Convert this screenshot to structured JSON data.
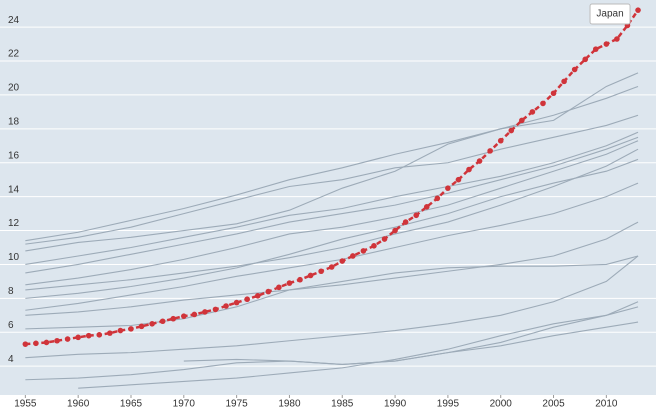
{
  "chart_data": {
    "type": "line",
    "xlim": [
      1952.6,
      2014.7
    ],
    "ylim": [
      2.3,
      25.6
    ],
    "xticks": [
      1955,
      1960,
      1965,
      1970,
      1975,
      1980,
      1985,
      1990,
      1995,
      2000,
      2005,
      2010
    ],
    "yticks": [
      4,
      6,
      8,
      10,
      12,
      14,
      16,
      18,
      20,
      22,
      24
    ],
    "grid": true,
    "series": [
      {
        "name": "Japan",
        "color": "#d0343a",
        "x": [
          1955,
          1956,
          1957,
          1958,
          1959,
          1960,
          1961,
          1962,
          1963,
          1964,
          1965,
          1966,
          1967,
          1968,
          1969,
          1970,
          1971,
          1972,
          1973,
          1974,
          1975,
          1976,
          1977,
          1978,
          1979,
          1980,
          1981,
          1982,
          1983,
          1984,
          1985,
          1986,
          1987,
          1988,
          1989,
          1990,
          1991,
          1992,
          1993,
          1994,
          1995,
          1996,
          1997,
          1998,
          1999,
          2000,
          2001,
          2002,
          2003,
          2004,
          2005,
          2006,
          2007,
          2008,
          2009,
          2010,
          2011,
          2012,
          2013
        ],
        "values": [
          5.3,
          5.35,
          5.4,
          5.5,
          5.6,
          5.7,
          5.8,
          5.85,
          5.95,
          6.1,
          6.2,
          6.35,
          6.5,
          6.65,
          6.8,
          6.95,
          7.05,
          7.2,
          7.35,
          7.55,
          7.75,
          7.95,
          8.15,
          8.4,
          8.65,
          8.9,
          9.1,
          9.35,
          9.6,
          9.85,
          10.2,
          10.5,
          10.8,
          11.1,
          11.5,
          12.0,
          12.5,
          12.9,
          13.4,
          13.9,
          14.5,
          15.0,
          15.6,
          16.1,
          16.7,
          17.3,
          17.9,
          18.5,
          19.0,
          19.5,
          20.1,
          20.8,
          21.5,
          22.1,
          22.7,
          23.0,
          23.3,
          24.1,
          25.0
        ]
      },
      {
        "color": "#9dabb8",
        "x": [
          1955,
          1960,
          1965,
          1970,
          1975,
          1980,
          1985,
          1990,
          1995,
          2000,
          2005,
          2010,
          2013
        ],
        "values": [
          11.4,
          11.9,
          12.6,
          13.3,
          14.1,
          15.0,
          15.7,
          16.5,
          17.2,
          18.0,
          18.8,
          19.8,
          20.5
        ]
      },
      {
        "color": "#9dabb8",
        "x": [
          1955,
          1960,
          1965,
          1970,
          1975,
          1980,
          1985,
          1990,
          1995,
          2000,
          2005,
          2010,
          2013
        ],
        "values": [
          11.2,
          11.6,
          12.2,
          13.0,
          13.8,
          14.6,
          15.0,
          15.7,
          16.0,
          16.8,
          17.5,
          18.2,
          18.8
        ]
      },
      {
        "color": "#9dabb8",
        "x": [
          1955,
          1960,
          1965,
          1970,
          1975,
          1980,
          1985,
          1990,
          1995,
          2000,
          2005,
          2010,
          2013
        ],
        "values": [
          10.8,
          11.3,
          11.6,
          12.0,
          12.4,
          13.2,
          14.5,
          15.5,
          17.1,
          18.0,
          18.5,
          20.5,
          21.3
        ]
      },
      {
        "color": "#9dabb8",
        "x": [
          1955,
          1960,
          1965,
          1970,
          1975,
          1980,
          1985,
          1990,
          1995,
          2000,
          2005,
          2010,
          2013
        ],
        "values": [
          10.0,
          10.5,
          11.0,
          11.6,
          12.2,
          12.9,
          13.3,
          14.0,
          14.6,
          15.2,
          16.0,
          17.0,
          17.8
        ]
      },
      {
        "color": "#9dabb8",
        "x": [
          1955,
          1960,
          1965,
          1970,
          1975,
          1980,
          1985,
          1990,
          1995,
          2000,
          2005,
          2010,
          2013
        ],
        "values": [
          9.5,
          10.0,
          10.6,
          11.2,
          11.8,
          12.5,
          13.0,
          13.5,
          14.2,
          15.0,
          15.8,
          16.8,
          17.5
        ]
      },
      {
        "color": "#9dabb8",
        "x": [
          1955,
          1960,
          1965,
          1970,
          1975,
          1980,
          1985,
          1990,
          1995,
          2000,
          2005,
          2010,
          2013
        ],
        "values": [
          8.8,
          9.2,
          9.7,
          10.3,
          11.0,
          11.8,
          12.2,
          12.8,
          13.5,
          14.5,
          15.5,
          16.5,
          17.3
        ]
      },
      {
        "color": "#9dabb8",
        "x": [
          1955,
          1960,
          1965,
          1970,
          1975,
          1980,
          1985,
          1990,
          1995,
          2000,
          2005,
          2010,
          2013
        ],
        "values": [
          8.5,
          8.8,
          9.1,
          9.5,
          9.9,
          10.4,
          11.0,
          11.8,
          12.5,
          13.5,
          14.6,
          15.8,
          16.8
        ]
      },
      {
        "color": "#9dabb8",
        "x": [
          1955,
          1960,
          1965,
          1970,
          1975,
          1980,
          1985,
          1990,
          1995,
          2000,
          2005,
          2010,
          2013
        ],
        "values": [
          8.0,
          8.3,
          8.7,
          9.2,
          9.8,
          10.6,
          11.5,
          12.2,
          13.0,
          14.0,
          14.8,
          15.5,
          16.2
        ]
      },
      {
        "color": "#9dabb8",
        "x": [
          1955,
          1960,
          1965,
          1970,
          1975,
          1980,
          1985,
          1990,
          1995,
          2000,
          2005,
          2010,
          2013
        ],
        "values": [
          7.3,
          7.7,
          8.2,
          8.7,
          9.3,
          9.8,
          10.3,
          11.0,
          11.7,
          12.3,
          13.0,
          14.0,
          14.8
        ]
      },
      {
        "color": "#9dabb8",
        "x": [
          1955,
          1960,
          1965,
          1970,
          1975,
          1980,
          1985,
          1990,
          1995,
          2000,
          2005,
          2010,
          2013
        ],
        "values": [
          7.0,
          7.2,
          7.5,
          7.9,
          8.2,
          8.5,
          8.8,
          9.2,
          9.6,
          10.0,
          10.5,
          11.5,
          12.5
        ]
      },
      {
        "color": "#9dabb8",
        "x": [
          1955,
          1960,
          1965,
          1970,
          1975,
          1980,
          1985,
          1990,
          1995,
          2000,
          2005,
          2010,
          2013
        ],
        "values": [
          6.2,
          6.3,
          6.4,
          6.8,
          7.5,
          8.5,
          9.0,
          9.5,
          9.8,
          9.9,
          9.9,
          10.0,
          10.5
        ]
      },
      {
        "color": "#9dabb8",
        "x": [
          1955,
          1960,
          1965,
          1970,
          1975,
          1980,
          1985,
          1990,
          1995,
          2000,
          2005,
          2010,
          2013
        ],
        "values": [
          4.5,
          4.7,
          4.8,
          5.0,
          5.2,
          5.5,
          5.8,
          6.1,
          6.5,
          7.0,
          7.8,
          9.0,
          10.5
        ]
      },
      {
        "color": "#9dabb8",
        "x": [
          1955,
          1960,
          1965,
          1970,
          1975,
          1980,
          1985,
          1990,
          1995,
          2000,
          2005,
          2010,
          2013
        ],
        "values": [
          3.2,
          3.3,
          3.5,
          3.8,
          4.2,
          4.3,
          4.1,
          4.3,
          4.8,
          5.4,
          6.3,
          7.0,
          7.8
        ]
      },
      {
        "color": "#9dabb8",
        "x": [
          1955,
          1960,
          1965,
          1970,
          1975,
          1980,
          1985,
          1990,
          1995,
          2000,
          2005,
          2010,
          2013
        ],
        "values": [
          null,
          2.7,
          2.9,
          3.1,
          3.3,
          3.6,
          3.9,
          4.4,
          5.0,
          5.8,
          6.5,
          7.0,
          7.5
        ]
      },
      {
        "color": "#9dabb8",
        "x": [
          1955,
          1960,
          1965,
          1970,
          1975,
          1980,
          1985,
          1990,
          1995,
          2000,
          2005,
          2010,
          2013
        ],
        "values": [
          null,
          null,
          null,
          4.3,
          4.4,
          4.3,
          4.1,
          4.3,
          4.8,
          5.2,
          5.8,
          6.3,
          6.6
        ]
      }
    ]
  }
}
